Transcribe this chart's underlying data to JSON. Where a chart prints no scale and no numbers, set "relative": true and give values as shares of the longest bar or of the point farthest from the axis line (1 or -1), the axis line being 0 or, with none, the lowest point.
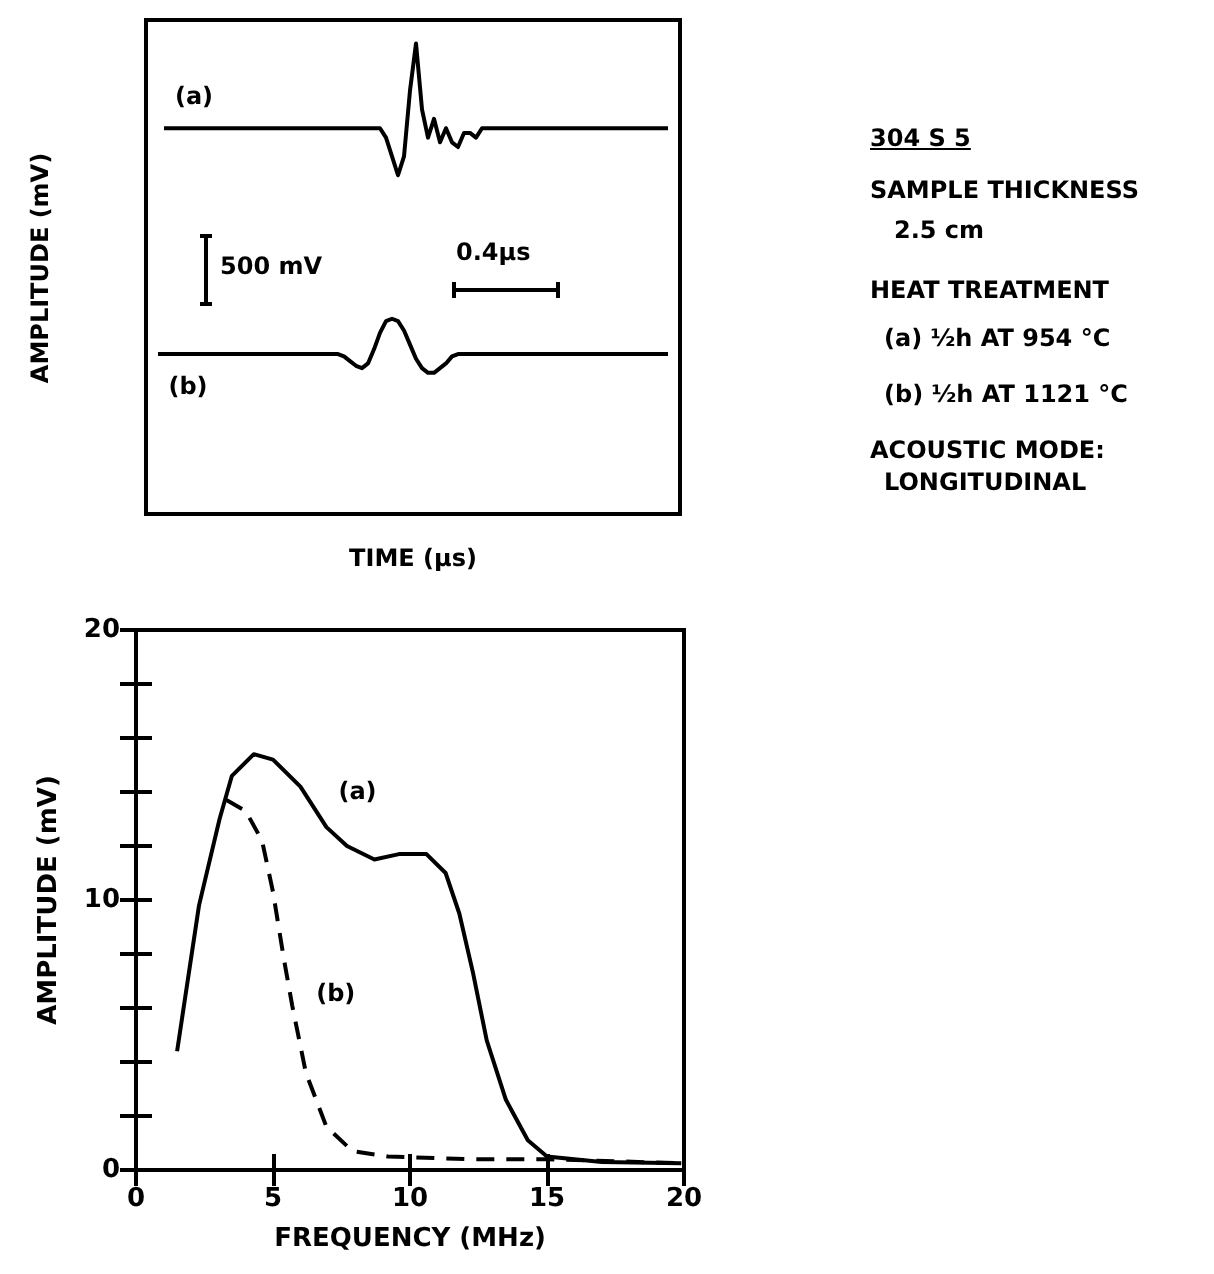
{
  "chart_data": [
    {
      "type": "line",
      "relative": true,
      "xlabel": "TIME (µs)",
      "ylabel": "AMPLITUDE (mV)",
      "annotations": [
        "500 mV",
        "0.4µs"
      ],
      "categories": [
        null,
        null,
        null,
        null,
        null,
        null,
        null,
        null,
        null,
        null,
        null,
        null,
        null,
        null,
        null,
        null,
        null,
        null,
        null,
        null,
        null,
        null,
        null,
        null,
        null,
        null,
        null,
        null,
        null,
        null,
        null,
        null,
        null,
        null,
        null,
        null,
        null,
        null,
        null,
        null,
        null,
        null,
        null,
        null,
        null,
        null,
        null,
        null,
        null,
        null,
        null,
        null,
        null,
        null,
        null,
        null,
        null,
        null,
        null,
        null,
        null,
        null,
        null,
        null,
        null,
        null,
        null,
        null,
        null,
        null,
        null,
        null,
        null,
        null,
        null,
        null,
        null,
        null,
        null,
        null,
        null,
        null,
        null,
        null,
        null,
        null,
        null,
        null,
        null,
        null
      ],
      "series": [
        {
          "name": "(a)",
          "color": "#000000",
          "values": [
            null,
            null,
            null,
            0.82,
            0.82,
            0.82,
            0.82,
            0.82,
            0.82,
            0.82,
            0.82,
            0.82,
            0.82,
            0.82,
            0.82,
            0.82,
            0.82,
            0.82,
            0.82,
            0.82,
            0.82,
            0.82,
            0.82,
            0.82,
            0.82,
            0.82,
            0.82,
            0.82,
            0.82,
            0.82,
            0.82,
            0.82,
            0.82,
            0.82,
            0.82,
            0.82,
            0.82,
            0.82,
            0.82,
            0.82,
            0.8,
            0.76,
            0.72,
            0.76,
            0.9,
            1.0,
            0.86,
            0.8,
            0.84,
            0.79,
            0.82,
            0.79,
            0.78,
            0.81,
            0.81,
            0.8,
            0.82,
            0.82,
            0.82,
            0.82,
            0.82,
            0.82,
            0.82,
            0.82,
            0.82,
            0.82,
            0.82,
            0.82,
            0.82,
            0.82,
            0.82,
            0.82,
            0.82,
            0.82,
            0.82,
            0.82,
            0.82,
            0.82,
            0.82,
            0.82,
            0.82,
            0.82,
            0.82,
            0.82,
            0.82,
            0.82,
            0.82,
            0.82,
            null,
            null
          ]
        },
        {
          "name": "(b)",
          "color": "#000000",
          "values": [
            null,
            null,
            0.34,
            0.34,
            0.34,
            0.34,
            0.34,
            0.34,
            0.34,
            0.34,
            0.34,
            0.34,
            0.34,
            0.34,
            0.34,
            0.34,
            0.34,
            0.34,
            0.34,
            0.34,
            0.34,
            0.34,
            0.34,
            0.34,
            0.34,
            0.34,
            0.34,
            0.34,
            0.34,
            0.34,
            0.34,
            0.34,
            0.34,
            0.335,
            0.325,
            0.315,
            0.31,
            0.32,
            0.35,
            0.385,
            0.41,
            0.415,
            0.41,
            0.39,
            0.36,
            0.33,
            0.31,
            0.3,
            0.3,
            0.31,
            0.32,
            0.335,
            0.34,
            0.34,
            0.34,
            0.34,
            0.34,
            0.34,
            0.34,
            0.34,
            0.34,
            0.34,
            0.34,
            0.34,
            0.34,
            0.34,
            0.34,
            0.34,
            0.34,
            0.34,
            0.34,
            0.34,
            0.34,
            0.34,
            0.34,
            0.34,
            0.34,
            0.34,
            0.34,
            0.34,
            0.34,
            0.34,
            0.34,
            0.34,
            0.34,
            0.34,
            0.34,
            0.34,
            null,
            null
          ]
        }
      ]
    },
    {
      "type": "line",
      "xlabel": "FREQUENCY (MHz)",
      "ylabel": "AMPLITUDE (mV)",
      "xlim": [
        0,
        20
      ],
      "xticks": [
        0,
        5,
        10,
        15,
        20
      ],
      "ylim": [
        0,
        20
      ],
      "yticks": [
        0,
        {
          "value": 2,
          "label": null
        },
        {
          "value": 4,
          "label": null
        },
        {
          "value": 6,
          "label": null
        },
        {
          "value": 8,
          "label": null
        },
        10,
        {
          "value": 12,
          "label": null
        },
        {
          "value": 14,
          "label": null
        },
        {
          "value": 16,
          "label": null
        },
        {
          "value": 18,
          "label": null
        },
        20
      ],
      "series": [
        {
          "name": "(a)",
          "color": "#000000",
          "line_style": "solid",
          "x": [
            1.5,
            2.3,
            3.05,
            3.5,
            4.3,
            5,
            6,
            6.95,
            7.7,
            8.7,
            9.6,
            10.6,
            11.3,
            11.8,
            12.3,
            12.8,
            13.5,
            14.3,
            15,
            17,
            19.9
          ],
          "values": [
            4.4,
            9.8,
            13,
            14.6,
            15.4,
            15.2,
            14.2,
            12.7,
            12,
            11.5,
            11.7,
            11.7,
            11,
            9.5,
            7.3,
            4.8,
            2.6,
            1.1,
            0.5,
            0.3,
            0.25
          ]
        },
        {
          "name": "(b)",
          "color": "#000000",
          "line_style": "dashed",
          "x": [
            3.3,
            4,
            4.6,
            5,
            5.4,
            5.7,
            6.2,
            6.95,
            7.9,
            9.2,
            12.1,
            15,
            19.9
          ],
          "values": [
            13.7,
            13.3,
            12.2,
            10.3,
            7.8,
            6.1,
            3.6,
            1.6,
            0.7,
            0.5,
            0.4,
            0.4,
            0.25
          ]
        }
      ]
    },
    {
      "type": "other",
      "annotations": [
        "304 S 5",
        "SAMPLE THICKNESS",
        "2.5 cm",
        "HEAT TREATMENT",
        "(a) ½h AT 954 °C",
        "(b) ½h AT 1121 °C",
        "ACOUSTIC MODE:",
        "LONGITUDINAL"
      ]
    }
  ]
}
